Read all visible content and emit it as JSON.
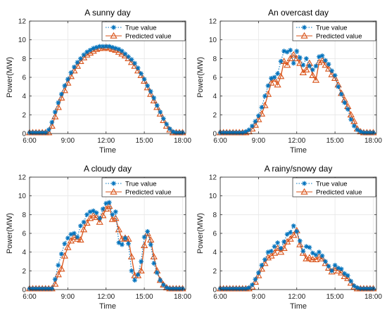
{
  "colors": {
    "true_series": "#0072BD",
    "pred_series": "#D95319",
    "grid": "#e6e6e6",
    "axis": "#262626"
  },
  "chart_data": [
    {
      "type": "line",
      "title": "A sunny day",
      "xlabel": "Time",
      "ylabel": "Power(MW)",
      "xlim": [
        6,
        18.25
      ],
      "ylim": [
        0,
        12
      ],
      "xticks": [
        6,
        9,
        12,
        15,
        18
      ],
      "xticklabels": [
        "6:00",
        "9:00",
        "12:00",
        "15:00",
        "18:00"
      ],
      "yticks": [
        0,
        2,
        4,
        6,
        8,
        10,
        12
      ],
      "grid": true,
      "legend_position": "top-right",
      "x": [
        6,
        6.25,
        6.5,
        6.75,
        7,
        7.25,
        7.5,
        7.75,
        8,
        8.25,
        8.5,
        8.75,
        9,
        9.25,
        9.5,
        9.75,
        10,
        10.25,
        10.5,
        10.75,
        11,
        11.25,
        11.5,
        11.75,
        12,
        12.25,
        12.5,
        12.75,
        13,
        13.25,
        13.5,
        13.75,
        14,
        14.25,
        14.5,
        14.75,
        15,
        15.25,
        15.5,
        15.75,
        16,
        16.25,
        16.5,
        16.75,
        17,
        17.25,
        17.5,
        17.75,
        18
      ],
      "series": [
        {
          "name": "True value",
          "style": "dotted-asterisk",
          "values": [
            0.1,
            0.1,
            0.1,
            0.1,
            0.1,
            0.1,
            0.4,
            1.2,
            2.3,
            3.3,
            4.2,
            5.1,
            5.8,
            6.5,
            7.1,
            7.6,
            8.0,
            8.4,
            8.7,
            8.9,
            9.1,
            9.2,
            9.3,
            9.3,
            9.3,
            9.3,
            9.2,
            9.1,
            9.0,
            8.8,
            8.5,
            8.2,
            7.9,
            7.5,
            7.0,
            6.4,
            5.8,
            5.1,
            4.5,
            3.8,
            3.0,
            2.3,
            1.6,
            1.0,
            0.5,
            0.2,
            0.1,
            0.1,
            0.1
          ]
        },
        {
          "name": "Predicted value",
          "style": "solid-triangle",
          "values": [
            0.1,
            0.1,
            0.1,
            0.1,
            0.1,
            0.1,
            0.1,
            0.8,
            1.8,
            2.8,
            3.8,
            4.6,
            5.4,
            6.1,
            6.7,
            7.2,
            7.7,
            8.1,
            8.4,
            8.6,
            8.8,
            9.0,
            9.1,
            9.1,
            9.2,
            9.1,
            9.0,
            8.9,
            8.7,
            8.5,
            8.3,
            8.0,
            7.6,
            7.2,
            6.7,
            6.2,
            5.6,
            4.9,
            4.2,
            3.5,
            2.8,
            2.1,
            1.4,
            0.8,
            0.4,
            0.1,
            0.1,
            0.1,
            0.1
          ]
        }
      ]
    },
    {
      "type": "line",
      "title": "An overcast day",
      "xlabel": "Time",
      "ylabel": "Power(MW)",
      "xlim": [
        6,
        18.25
      ],
      "ylim": [
        0,
        12
      ],
      "xticks": [
        6,
        9,
        12,
        15,
        18
      ],
      "xticklabels": [
        "6:00",
        "9:00",
        "12:00",
        "15:00",
        "18:00"
      ],
      "yticks": [
        0,
        2,
        4,
        6,
        8,
        10,
        12
      ],
      "grid": true,
      "legend_position": "top-right",
      "x": [
        6,
        6.25,
        6.5,
        6.75,
        7,
        7.25,
        7.5,
        7.75,
        8,
        8.25,
        8.5,
        8.75,
        9,
        9.25,
        9.5,
        9.75,
        10,
        10.25,
        10.5,
        10.75,
        11,
        11.25,
        11.5,
        11.75,
        12,
        12.25,
        12.5,
        12.75,
        13,
        13.25,
        13.5,
        13.75,
        14,
        14.25,
        14.5,
        14.75,
        15,
        15.25,
        15.5,
        15.75,
        16,
        16.25,
        16.5,
        16.75,
        17,
        17.25,
        17.5,
        17.75,
        18
      ],
      "series": [
        {
          "name": "True value",
          "style": "dotted-asterisk",
          "values": [
            0.1,
            0.1,
            0.1,
            0.1,
            0.1,
            0.1,
            0.1,
            0.1,
            0.2,
            0.4,
            0.8,
            1.3,
            1.9,
            2.8,
            4.0,
            5.1,
            5.9,
            6.0,
            6.4,
            7.7,
            8.8,
            8.7,
            8.9,
            7.5,
            8.8,
            8.1,
            7.3,
            8.0,
            7.2,
            6.8,
            7.2,
            8.2,
            8.3,
            7.8,
            7.4,
            6.7,
            6.2,
            5.0,
            4.2,
            3.3,
            2.6,
            1.5,
            0.8,
            0.4,
            0.2,
            0.1,
            0.1,
            0.1,
            0.1
          ]
        },
        {
          "name": "Predicted value",
          "style": "solid-triangle",
          "values": [
            0.1,
            0.1,
            0.1,
            0.1,
            0.1,
            0.1,
            0.1,
            0.1,
            0.1,
            0.2,
            0.5,
            0.9,
            1.5,
            2.1,
            3.0,
            4.2,
            5.4,
            5.8,
            5.2,
            6.1,
            7.7,
            7.3,
            8.0,
            8.4,
            8.0,
            7.5,
            6.5,
            6.8,
            7.5,
            6.2,
            5.7,
            7.6,
            7.8,
            7.3,
            6.9,
            6.3,
            5.9,
            5.2,
            4.3,
            3.6,
            2.9,
            2.0,
            1.3,
            0.5,
            0.2,
            0.1,
            0.1,
            0.1,
            0.1
          ]
        }
      ]
    },
    {
      "type": "line",
      "title": "A cloudy day",
      "xlabel": "Time",
      "ylabel": "Power(MW)",
      "xlim": [
        6,
        18.25
      ],
      "ylim": [
        0,
        12
      ],
      "xticks": [
        6,
        9,
        12,
        15,
        18
      ],
      "xticklabels": [
        "6:00",
        "9:00",
        "12:00",
        "15:00",
        "18:00"
      ],
      "yticks": [
        0,
        2,
        4,
        6,
        8,
        10,
        12
      ],
      "grid": true,
      "legend_position": "top-right",
      "x": [
        6,
        6.25,
        6.5,
        6.75,
        7,
        7.25,
        7.5,
        7.75,
        8,
        8.25,
        8.5,
        8.75,
        9,
        9.25,
        9.5,
        9.75,
        10,
        10.25,
        10.5,
        10.75,
        11,
        11.25,
        11.5,
        11.75,
        12,
        12.25,
        12.5,
        12.75,
        13,
        13.25,
        13.5,
        13.75,
        14,
        14.25,
        14.5,
        14.75,
        15,
        15.25,
        15.5,
        15.75,
        16,
        16.25,
        16.5,
        16.75,
        17,
        17.25,
        17.5,
        17.75,
        18
      ],
      "series": [
        {
          "name": "True value",
          "style": "dotted-asterisk",
          "values": [
            0.1,
            0.1,
            0.1,
            0.1,
            0.1,
            0.1,
            0.1,
            0.1,
            1.1,
            2.6,
            3.8,
            4.9,
            5.5,
            5.9,
            6.0,
            5.6,
            6.8,
            7.2,
            8.0,
            8.3,
            8.4,
            8.2,
            7.6,
            8.6,
            9.2,
            9.3,
            8.0,
            8.3,
            5.0,
            4.8,
            5.5,
            4.9,
            2.0,
            1.0,
            1.6,
            3.0,
            5.6,
            6.2,
            4.8,
            2.8,
            1.8,
            1.0,
            0.5,
            0.2,
            0.1,
            0.1,
            0.1,
            0.1,
            0.1
          ]
        },
        {
          "name": "Predicted value",
          "style": "solid-triangle",
          "values": [
            0.1,
            0.1,
            0.1,
            0.1,
            0.1,
            0.1,
            0.1,
            0.1,
            0.6,
            1.6,
            2.2,
            3.6,
            4.5,
            5.2,
            5.6,
            5.4,
            5.3,
            6.4,
            7.1,
            7.6,
            7.9,
            7.7,
            7.2,
            7.9,
            8.6,
            8.9,
            7.5,
            7.6,
            6.4,
            5.4,
            5.5,
            5.4,
            3.5,
            1.5,
            1.5,
            2.0,
            4.7,
            6.0,
            5.3,
            3.5,
            2.0,
            1.0,
            0.5,
            0.2,
            0.1,
            0.1,
            0.1,
            0.1,
            0.1
          ]
        }
      ]
    },
    {
      "type": "line",
      "title": "A rainy/snowy day",
      "xlabel": "Time",
      "ylabel": "Power(MW)",
      "xlim": [
        6,
        18.25
      ],
      "ylim": [
        0,
        12
      ],
      "xticks": [
        6,
        9,
        12,
        15,
        18
      ],
      "xticklabels": [
        "6:00",
        "9:00",
        "12:00",
        "15:00",
        "18:00"
      ],
      "yticks": [
        0,
        2,
        4,
        6,
        8,
        10,
        12
      ],
      "grid": true,
      "legend_position": "top-right",
      "x": [
        6,
        6.25,
        6.5,
        6.75,
        7,
        7.25,
        7.5,
        7.75,
        8,
        8.25,
        8.5,
        8.75,
        9,
        9.25,
        9.5,
        9.75,
        10,
        10.25,
        10.5,
        10.75,
        11,
        11.25,
        11.5,
        11.75,
        12,
        12.25,
        12.5,
        12.75,
        13,
        13.25,
        13.5,
        13.75,
        14,
        14.25,
        14.5,
        14.75,
        15,
        15.25,
        15.5,
        15.75,
        16,
        16.25,
        16.5,
        16.75,
        17,
        17.25,
        17.5,
        17.75,
        18
      ],
      "series": [
        {
          "name": "True value",
          "style": "dotted-asterisk",
          "values": [
            0.1,
            0.1,
            0.1,
            0.1,
            0.1,
            0.1,
            0.1,
            0.1,
            0.1,
            0.2,
            0.5,
            1.1,
            1.8,
            2.6,
            3.2,
            4.0,
            4.1,
            4.6,
            5.0,
            4.4,
            5.1,
            5.9,
            6.1,
            6.8,
            6.2,
            5.2,
            4.1,
            4.6,
            4.5,
            3.9,
            3.7,
            4.0,
            3.6,
            3.0,
            2.5,
            2.0,
            2.6,
            2.3,
            2.2,
            1.7,
            1.5,
            0.9,
            0.4,
            0.2,
            0.1,
            0.1,
            0.1,
            0.1,
            0.1
          ]
        },
        {
          "name": "Predicted value",
          "style": "solid-triangle",
          "values": [
            0.1,
            0.1,
            0.1,
            0.1,
            0.1,
            0.1,
            0.1,
            0.1,
            0.1,
            0.1,
            0.3,
            0.8,
            1.5,
            2.2,
            2.8,
            3.4,
            3.6,
            3.9,
            4.4,
            4.0,
            4.4,
            5.1,
            5.4,
            5.8,
            6.3,
            4.8,
            3.9,
            3.3,
            3.4,
            3.2,
            3.2,
            3.5,
            3.3,
            2.8,
            2.3,
            1.9,
            2.3,
            2.0,
            1.8,
            1.4,
            1.2,
            0.7,
            0.3,
            0.1,
            0.1,
            0.1,
            0.1,
            0.1,
            0.1
          ]
        }
      ]
    }
  ]
}
